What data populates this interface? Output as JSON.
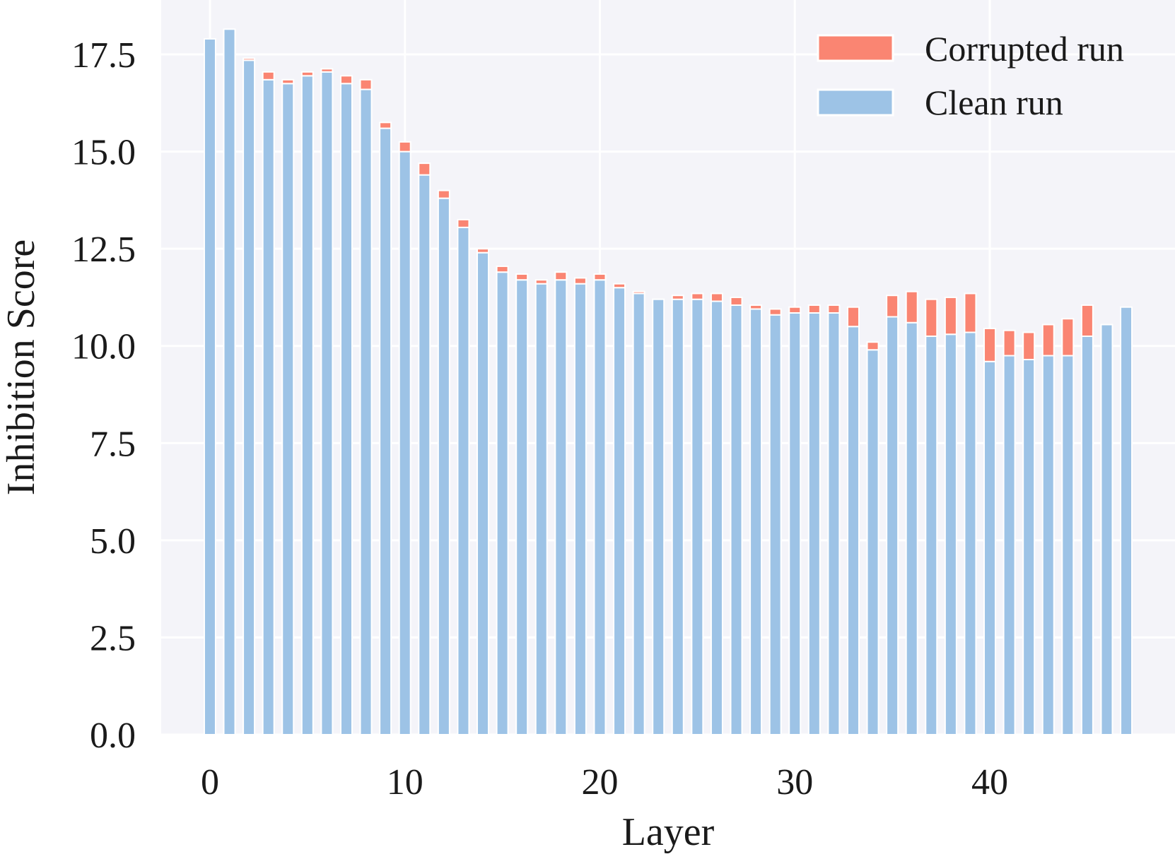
{
  "chart_data": {
    "type": "bar",
    "stacked": true,
    "title": "",
    "xlabel": "Layer",
    "ylabel": "Inhibition Score",
    "xlim": [
      -2.5,
      49.5
    ],
    "ylim": [
      0,
      18.9
    ],
    "xticks": [
      0,
      10,
      20,
      30,
      40
    ],
    "xtick_labels": [
      "0",
      "10",
      "20",
      "30",
      "40"
    ],
    "yticks": [
      0,
      2.5,
      5,
      7.5,
      10,
      12.5,
      15,
      17.5
    ],
    "ytick_labels": [
      "0.0",
      "2.5",
      "5.0",
      "7.5",
      "10.0",
      "12.5",
      "15.0",
      "17.5"
    ],
    "grid": true,
    "legend_position": "top-right",
    "x": [
      0,
      1,
      2,
      3,
      4,
      5,
      6,
      7,
      8,
      9,
      10,
      11,
      12,
      13,
      14,
      15,
      16,
      17,
      18,
      19,
      20,
      21,
      22,
      23,
      24,
      25,
      26,
      27,
      28,
      29,
      30,
      31,
      32,
      33,
      34,
      35,
      36,
      37,
      38,
      39,
      40,
      41,
      42,
      43,
      44,
      45,
      46,
      47
    ],
    "series": [
      {
        "name": "Clean run",
        "color": "#9dc3e6",
        "values": [
          17.9,
          18.15,
          17.35,
          16.85,
          16.75,
          16.95,
          17.05,
          16.75,
          16.6,
          15.6,
          15.0,
          14.4,
          13.8,
          13.05,
          12.4,
          11.9,
          11.7,
          11.6,
          11.7,
          11.6,
          11.7,
          11.5,
          11.35,
          11.2,
          11.2,
          11.2,
          11.15,
          11.05,
          10.95,
          10.8,
          10.85,
          10.85,
          10.85,
          10.5,
          9.9,
          10.75,
          10.6,
          10.25,
          10.3,
          10.35,
          9.6,
          9.75,
          9.65,
          9.75,
          9.75,
          10.25,
          10.55,
          11.0
        ]
      },
      {
        "name": "Corrupted run",
        "color": "#fa8572",
        "values": [
          0,
          0,
          0.05,
          0.2,
          0.1,
          0.1,
          0.08,
          0.2,
          0.25,
          0.15,
          0.25,
          0.3,
          0.2,
          0.2,
          0.1,
          0.15,
          0.15,
          0.1,
          0.2,
          0.15,
          0.15,
          0.1,
          0.05,
          0,
          0.1,
          0.15,
          0.2,
          0.2,
          0.1,
          0.15,
          0.15,
          0.2,
          0.2,
          0.5,
          0.2,
          0.55,
          0.8,
          0.95,
          0.95,
          1.0,
          0.85,
          0.65,
          0.7,
          0.8,
          0.95,
          0.8,
          0,
          0
        ]
      }
    ],
    "legend": [
      {
        "label": "Corrupted run",
        "color": "#fa8572"
      },
      {
        "label": "Clean run",
        "color": "#9dc3e6"
      }
    ],
    "plot_background": "#f4f4f9",
    "grid_color": "#ffffff"
  }
}
